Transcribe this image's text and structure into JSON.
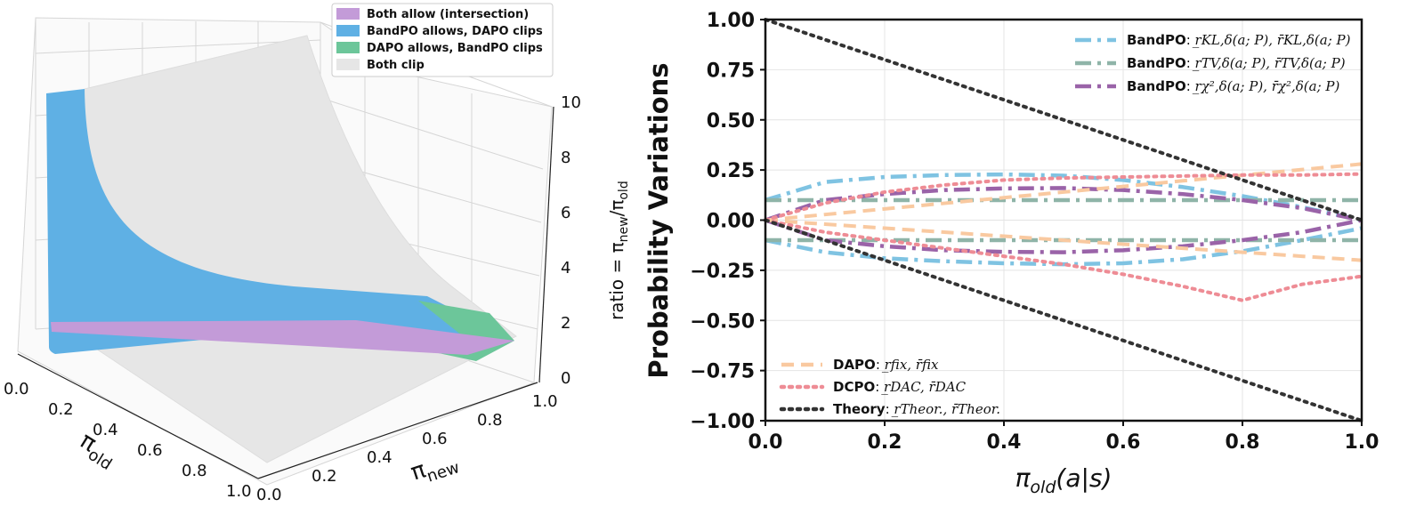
{
  "chart_data": [
    {
      "type": "surface3d",
      "title": "",
      "xlabel": "π",
      "xlabel_sub": "old",
      "ylabel": "π",
      "ylabel_sub": "new",
      "zlabel": "ratio = π",
      "zlabel_sub1": "new",
      "zlabel_mid": "/π",
      "zlabel_sub2": "old",
      "x_ticks": [
        "0.0",
        "0.2",
        "0.4",
        "0.6",
        "0.8",
        "1.0"
      ],
      "y_ticks": [
        "0.0",
        "0.2",
        "0.4",
        "0.6",
        "0.8",
        "1.0"
      ],
      "z_ticks": [
        "0",
        "2",
        "4",
        "6",
        "8",
        "10"
      ],
      "zlim": [
        0,
        10
      ],
      "legend": [
        {
          "label": "Both allow (intersection)",
          "color": "#c39bd8"
        },
        {
          "label": "BandPO allows, DAPO clips",
          "color": "#5fb0e4"
        },
        {
          "label": "DAPO allows, BandPO clips",
          "color": "#6cc69a"
        },
        {
          "label": "Both clip",
          "color": "#e6e6e6"
        }
      ]
    },
    {
      "type": "line",
      "ylabel": "Probability Variations",
      "xlabel": "π",
      "xlabel_sub": "old",
      "xlabel_rest": "(a|s)",
      "xlim": [
        0,
        1
      ],
      "ylim": [
        -1,
        1
      ],
      "x_ticks": [
        "0.0",
        "0.2",
        "0.4",
        "0.6",
        "0.8",
        "1.0"
      ],
      "y_ticks": [
        "1.00",
        "0.75",
        "0.50",
        "0.25",
        "0.00",
        "−0.25",
        "−0.50",
        "−0.75",
        "−1.00"
      ],
      "x": [
        0,
        0.1,
        0.2,
        0.3,
        0.4,
        0.5,
        0.6,
        0.7,
        0.8,
        0.9,
        1.0
      ],
      "series": [
        {
          "name": "BandPO KL upper",
          "color": "#7fc3e2",
          "dash": "dashdot",
          "values": [
            0.1,
            0.19,
            0.215,
            0.225,
            0.228,
            0.222,
            0.2,
            0.165,
            0.12,
            0.065,
            0.0
          ]
        },
        {
          "name": "BandPO KL lower",
          "color": "#7fc3e2",
          "dash": "dashdot",
          "values": [
            -0.1,
            -0.16,
            -0.19,
            -0.205,
            -0.215,
            -0.22,
            -0.215,
            -0.195,
            -0.155,
            -0.1,
            -0.04
          ]
        },
        {
          "name": "BandPO TV upper",
          "color": "#8fb4a8",
          "dash": "dashdot",
          "values": [
            0.1,
            0.1,
            0.1,
            0.1,
            0.1,
            0.1,
            0.1,
            0.1,
            0.1,
            0.1,
            0.1
          ]
        },
        {
          "name": "BandPO TV lower",
          "color": "#8fb4a8",
          "dash": "dashdot",
          "values": [
            -0.1,
            -0.1,
            -0.1,
            -0.1,
            -0.1,
            -0.1,
            -0.1,
            -0.1,
            -0.1,
            -0.1,
            -0.1
          ]
        },
        {
          "name": "BandPO chi2 upper",
          "color": "#9a63a8",
          "dash": "dashdot",
          "values": [
            0.0,
            0.1,
            0.13,
            0.15,
            0.158,
            0.16,
            0.15,
            0.13,
            0.1,
            0.06,
            0.0
          ]
        },
        {
          "name": "BandPO chi2 lower",
          "color": "#9a63a8",
          "dash": "dashdot",
          "values": [
            0.0,
            -0.1,
            -0.13,
            -0.15,
            -0.158,
            -0.16,
            -0.15,
            -0.13,
            -0.1,
            -0.06,
            0.0
          ]
        },
        {
          "name": "DAPO upper",
          "color": "#f9c9a0",
          "dash": "dashed",
          "values": [
            0.0,
            0.028,
            0.056,
            0.084,
            0.112,
            0.14,
            0.168,
            0.196,
            0.224,
            0.252,
            0.28
          ]
        },
        {
          "name": "DAPO lower",
          "color": "#f9c9a0",
          "dash": "dashed",
          "values": [
            0.0,
            -0.02,
            -0.04,
            -0.06,
            -0.08,
            -0.1,
            -0.12,
            -0.14,
            -0.16,
            -0.18,
            -0.2
          ]
        },
        {
          "name": "DCPO upper",
          "color": "#ee8c95",
          "dash": "dotted",
          "values": [
            0.0,
            0.085,
            0.14,
            0.175,
            0.2,
            0.21,
            0.215,
            0.22,
            0.225,
            0.225,
            0.23
          ]
        },
        {
          "name": "DCPO lower",
          "color": "#ee8c95",
          "dash": "dotted",
          "values": [
            0.0,
            -0.06,
            -0.1,
            -0.14,
            -0.18,
            -0.22,
            -0.27,
            -0.33,
            -0.4,
            -0.32,
            -0.28
          ]
        },
        {
          "name": "Theory upper",
          "color": "#333333",
          "dash": "dotted",
          "values": [
            1.0,
            0.9,
            0.8,
            0.7,
            0.6,
            0.5,
            0.4,
            0.3,
            0.2,
            0.1,
            0.0
          ]
        },
        {
          "name": "Theory lower",
          "color": "#333333",
          "dash": "dotted",
          "values": [
            0.0,
            -0.1,
            -0.2,
            -0.3,
            -0.4,
            -0.5,
            -0.6,
            -0.7,
            -0.8,
            -0.9,
            -1.0
          ]
        }
      ],
      "legend_top": [
        {
          "name": "BandPO",
          "formula": "r̲KL,δ(a; P), r̄KL,δ(a; P)",
          "color": "#7fc3e2",
          "dash": "dashdot"
        },
        {
          "name": "BandPO",
          "formula": "r̲TV,δ(a; P), r̄TV,δ(a; P)",
          "color": "#8fb4a8",
          "dash": "dashdot"
        },
        {
          "name": "BandPO",
          "formula": "r̲χ²,δ(a; P), r̄χ²,δ(a; P)",
          "color": "#9a63a8",
          "dash": "dashdot"
        }
      ],
      "legend_bottom": [
        {
          "name": "DAPO",
          "formula": "r̲fix, r̄fix",
          "color": "#f9c9a0",
          "dash": "dashed"
        },
        {
          "name": "DCPO",
          "formula": "r̲DAC, r̄DAC",
          "color": "#ee8c95",
          "dash": "dotted"
        },
        {
          "name": "Theory",
          "formula": "r̲Theor., r̄Theor.",
          "color": "#333333",
          "dash": "dotted"
        }
      ]
    }
  ]
}
